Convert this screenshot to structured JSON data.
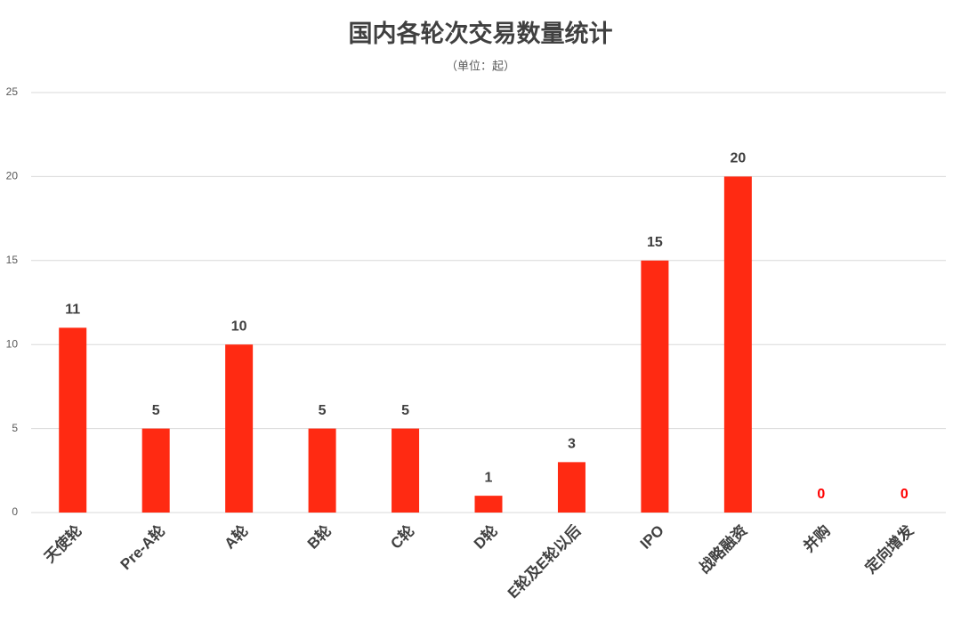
{
  "chart_data": {
    "type": "bar",
    "title": "国内各轮次交易数量统计",
    "subtitle": "（单位：起）",
    "categories": [
      "天使轮",
      "Pre-A轮",
      "A轮",
      "B轮",
      "C轮",
      "D轮",
      "E轮及E轮以后",
      "IPO",
      "战略融资",
      "并购",
      "定向增发"
    ],
    "values": [
      11,
      5,
      10,
      5,
      5,
      1,
      3,
      15,
      20,
      0,
      0
    ],
    "color": "#ff2a12",
    "ylim": [
      0,
      25
    ],
    "yticks": [
      0,
      5,
      10,
      15,
      20,
      25
    ],
    "grid": true
  }
}
